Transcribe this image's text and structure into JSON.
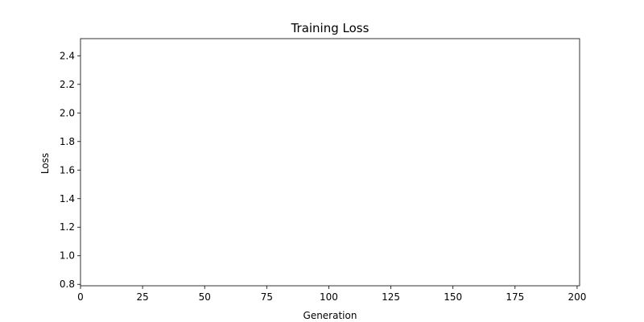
{
  "chart_data": {
    "type": "line",
    "title": "Training Loss",
    "xlabel": "Generation",
    "ylabel": "Loss",
    "xlim": [
      0,
      201
    ],
    "xticks": [
      0,
      25,
      50,
      75,
      100,
      125,
      150,
      175,
      200
    ],
    "ylim": [
      0.79,
      2.52
    ],
    "yticks": [
      0.8,
      {
        "value": 1.0,
        "label": "1.0"
      },
      1.2,
      1.4,
      1.6,
      1.8,
      {
        "value": 2.0,
        "label": "2.0"
      },
      2.2,
      2.4
    ],
    "series": []
  }
}
